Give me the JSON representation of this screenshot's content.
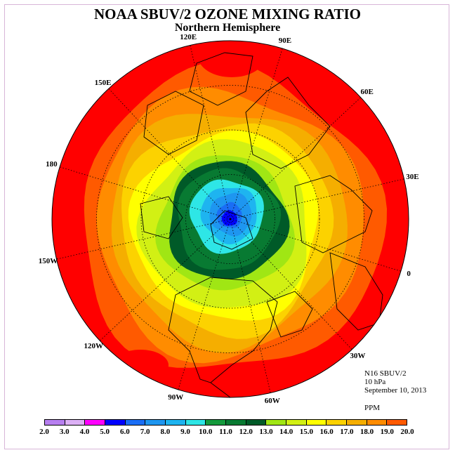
{
  "title": "NOAA SBUV/2 OZONE MIXING RATIO",
  "subtitle": "Northern Hemisphere",
  "info": {
    "instrument": "N16 SBUV/2",
    "level": "10 hPa",
    "date": "September 10, 2013",
    "unit": "PPM"
  },
  "longitude_labels": [
    {
      "text": "90E",
      "lon": 90
    },
    {
      "text": "60E",
      "lon": 60
    },
    {
      "text": "30E",
      "lon": 30
    },
    {
      "text": "0",
      "lon": 0
    },
    {
      "text": "30W",
      "lon": -30
    },
    {
      "text": "60W",
      "lon": -60
    },
    {
      "text": "90W",
      "lon": -90
    },
    {
      "text": "120W",
      "lon": -120
    },
    {
      "text": "150W",
      "lon": -150
    },
    {
      "text": "180",
      "lon": 180
    },
    {
      "text": "150E",
      "lon": 150
    },
    {
      "text": "120E",
      "lon": 120
    }
  ],
  "colorbar": {
    "ticks": [
      "2.0",
      "3.0",
      "4.0",
      "5.0",
      "6.0",
      "7.0",
      "8.0",
      "9.0",
      "10.0",
      "11.0",
      "12.0",
      "13.0",
      "14.0",
      "15.0",
      "16.0",
      "17.0",
      "18.0",
      "19.0",
      "20.0"
    ],
    "colors": [
      "#b77ff0",
      "#dcb0f5",
      "#ff00ff",
      "#0000ff",
      "#1a6ef5",
      "#1e96f0",
      "#1eb4f0",
      "#2ee6e6",
      "#149a3c",
      "#087a32",
      "#005a28",
      "#a0e614",
      "#d2f014",
      "#ffff00",
      "#fcd200",
      "#f5ae00",
      "#ff8c00",
      "#ff5a00",
      "#ff0000",
      "#8c5a3c"
    ]
  },
  "contours": [
    {
      "level": 19,
      "color": "#ff0000"
    },
    {
      "level": 18,
      "color": "#ff5a00"
    },
    {
      "level": 17,
      "color": "#ff8c00"
    },
    {
      "level": 16,
      "color": "#f5ae00"
    },
    {
      "level": 15,
      "color": "#fcd200"
    },
    {
      "level": 14,
      "color": "#ffff00"
    },
    {
      "level": 13,
      "color": "#d2f014"
    },
    {
      "level": 12,
      "color": "#a0e614"
    },
    {
      "level": 11,
      "color": "#005a28"
    },
    {
      "level": 10,
      "color": "#087a32"
    },
    {
      "level": 9,
      "color": "#2ee6e6"
    },
    {
      "level": 8,
      "color": "#1eb4f0"
    },
    {
      "level": 7,
      "color": "#1e96f0"
    },
    {
      "level": 6,
      "color": "#1a6ef5"
    },
    {
      "level": 5,
      "color": "#0000ff"
    }
  ]
}
